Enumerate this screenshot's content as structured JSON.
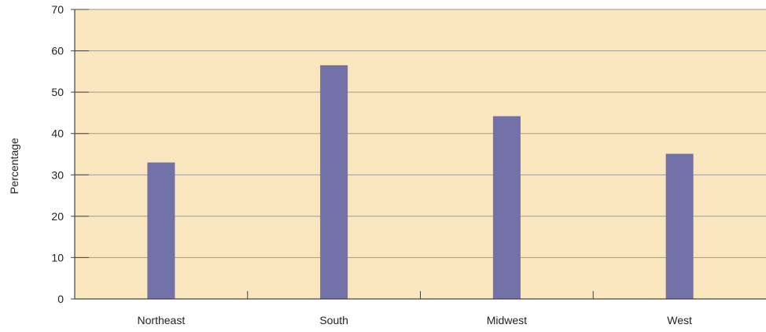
{
  "chart_data": {
    "type": "bar",
    "title": "",
    "xlabel": "",
    "ylabel": "Percentage",
    "categories": [
      "Northeast",
      "South",
      "Midwest",
      "West"
    ],
    "values": [
      33,
      56.5,
      44.2,
      35.1
    ],
    "ylim": [
      0,
      70
    ],
    "yticks": [
      "0",
      "10",
      "20",
      "30",
      "40",
      "50",
      "60",
      "70"
    ],
    "grid": true,
    "colors": {
      "plot_background": "#fbe7bf",
      "bar": "#7272a8",
      "gridline": "#9a9a9a",
      "axis": "#444444"
    }
  }
}
